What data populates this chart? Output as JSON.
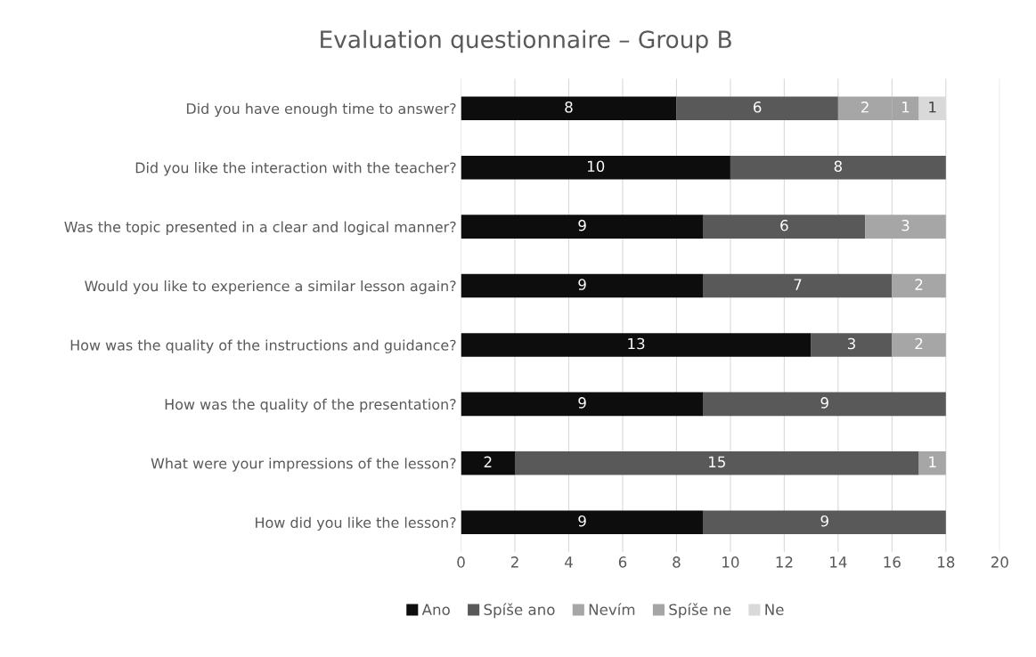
{
  "chart_data": {
    "type": "bar",
    "orientation": "horizontal",
    "stacked": true,
    "title": "Evaluation questionnaire – Group B",
    "categories": [
      "Did you have enough time to answer?",
      "Did you like the interaction with the teacher?",
      "Was the topic presented in a clear and logical manner?",
      "Would you like to experience a similar lesson again?",
      "How was the quality of the instructions and guidance?",
      "How was the quality of the presentation?",
      "What were your impressions of the lesson?",
      "How did you like the lesson?"
    ],
    "series": [
      {
        "name": "Ano",
        "color": "#0d0d0d",
        "values": [
          8,
          10,
          9,
          9,
          13,
          9,
          2,
          9
        ]
      },
      {
        "name": "Spíše ano",
        "color": "#595959",
        "values": [
          6,
          8,
          6,
          7,
          3,
          9,
          15,
          9
        ]
      },
      {
        "name": "Nevím",
        "color": "#a6a6a6",
        "values": [
          2,
          0,
          3,
          2,
          2,
          0,
          1,
          0
        ],
        "value_labels": [
          "2",
          null,
          "3",
          "2",
          "2",
          null,
          "1",
          null
        ]
      },
      {
        "name": "Spíše ne",
        "color": "#a5a5a5",
        "values": [
          1,
          0,
          0,
          0,
          0,
          0,
          0,
          0
        ],
        "value_labels": [
          "1",
          null,
          null,
          null,
          null,
          null,
          null,
          null
        ]
      },
      {
        "name": "Ne",
        "color": "#d9d9d9",
        "values": [
          1,
          0,
          0,
          0,
          0,
          0,
          0,
          0
        ],
        "value_labels": [
          "1",
          null,
          null,
          null,
          null,
          null,
          null,
          null
        ]
      }
    ],
    "data_labels": true,
    "xlim": [
      0,
      20
    ],
    "xticks": [
      0,
      2,
      4,
      6,
      8,
      10,
      12,
      14,
      16,
      18,
      20
    ],
    "grid": "x",
    "legend": "bottom"
  }
}
